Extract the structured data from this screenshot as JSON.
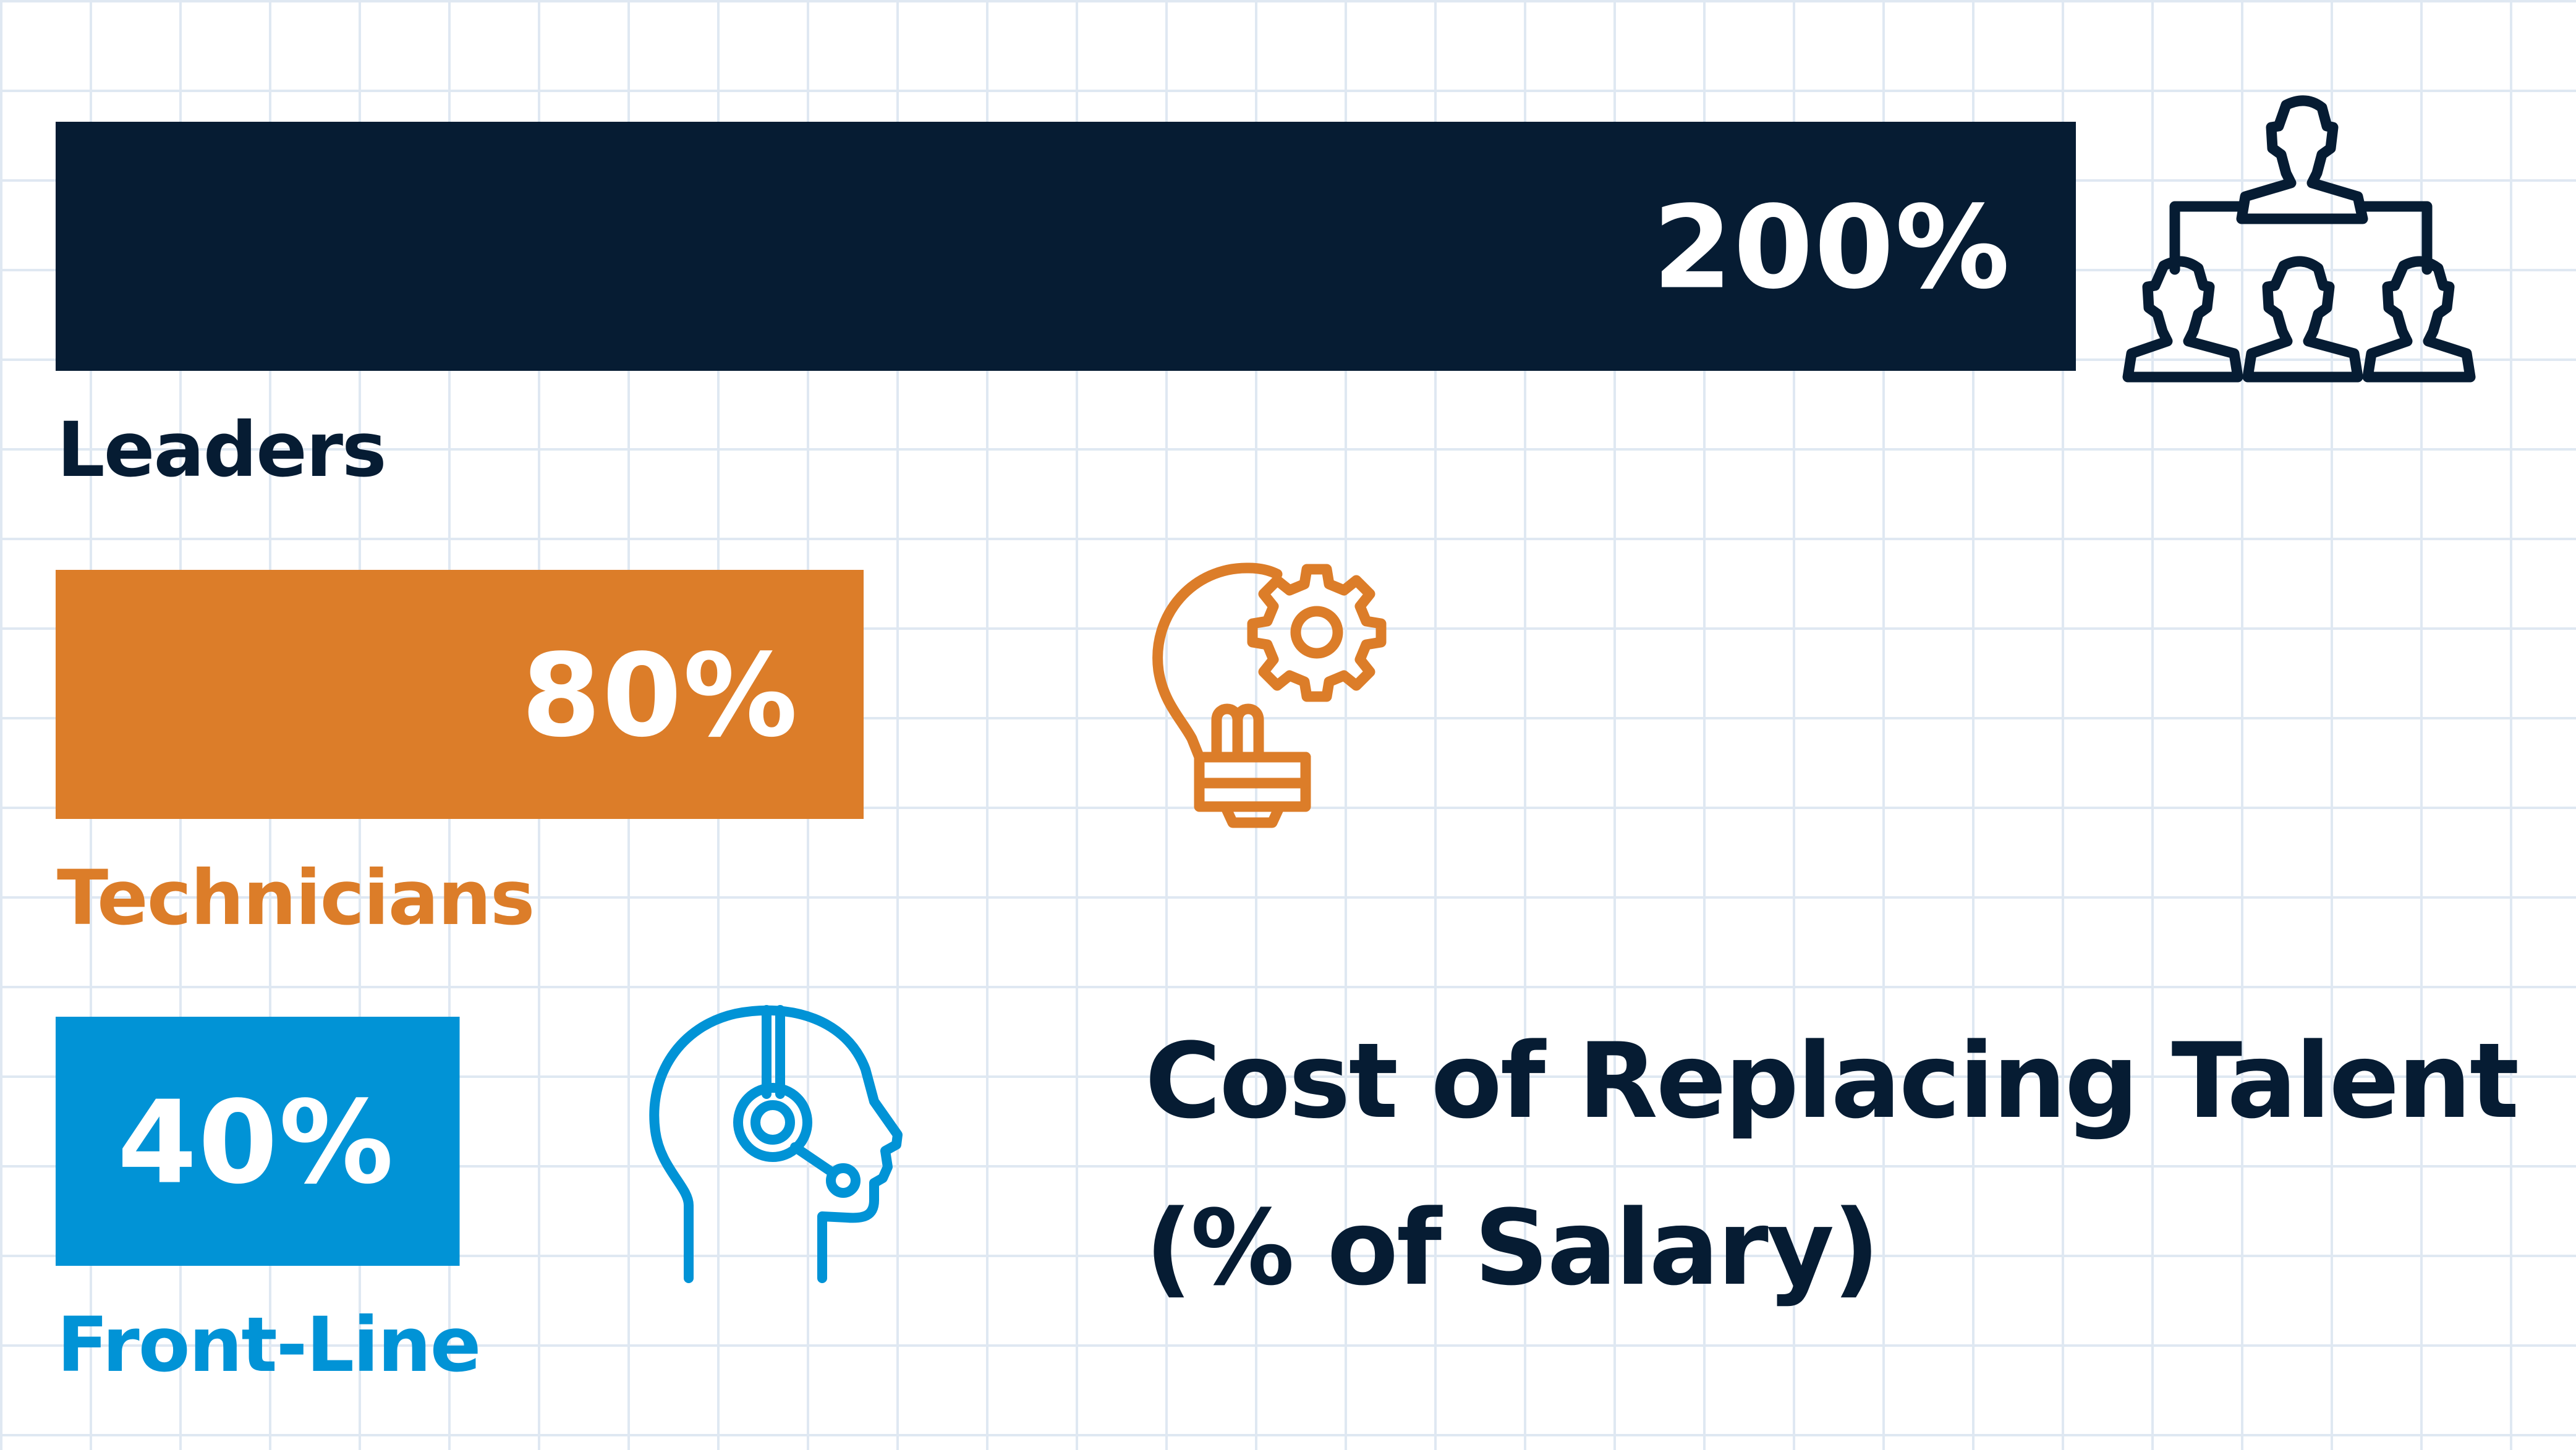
{
  "chart_data": {
    "type": "bar",
    "orientation": "horizontal",
    "title": "Cost of Replacing Talent",
    "subtitle": "(% of Salary)",
    "categories": [
      "Leaders",
      "Technicians",
      "Front-Line"
    ],
    "values": [
      200,
      80,
      40
    ],
    "value_labels": [
      "200%",
      "80%",
      "40%"
    ],
    "colors": [
      "#061c33",
      "#dc7d29",
      "#0193d6"
    ],
    "icons": [
      "org-chart-icon",
      "lightbulb-gear-icon",
      "headset-head-icon"
    ],
    "xlim": [
      0,
      200
    ],
    "grid": true
  }
}
